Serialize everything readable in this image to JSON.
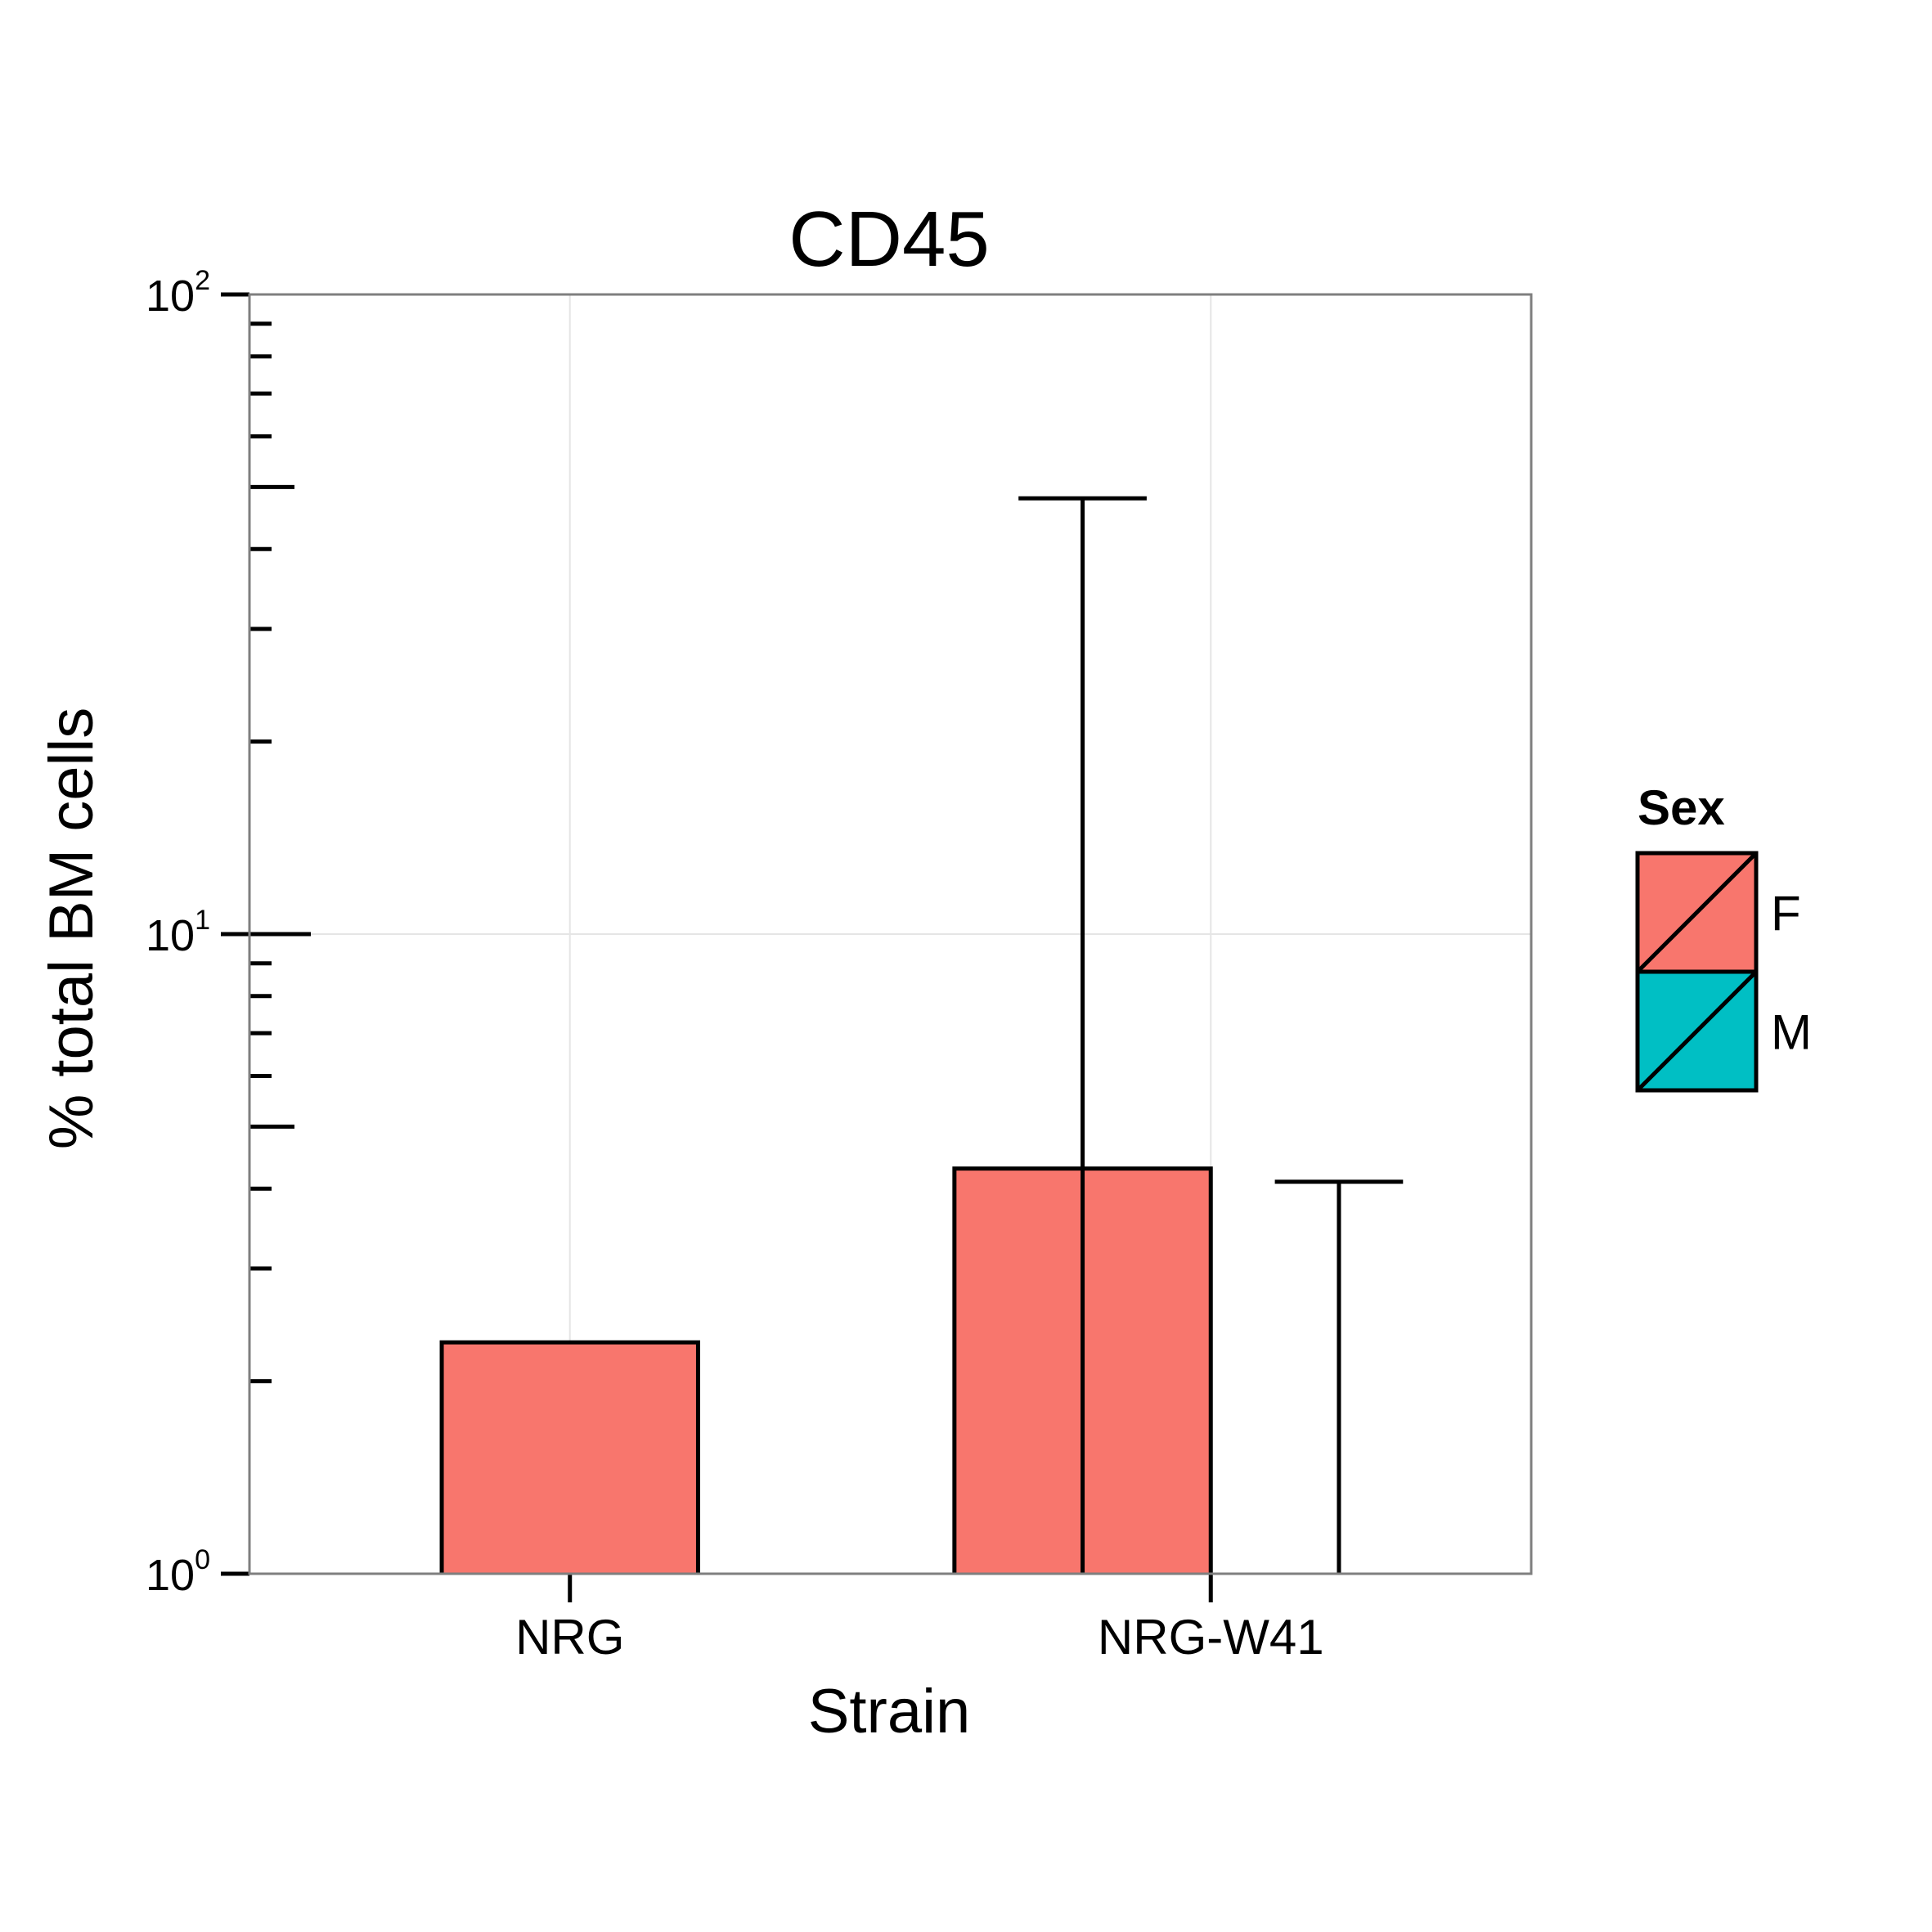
{
  "chart_data": {
    "type": "bar",
    "title": "CD45",
    "xlabel": "Strain",
    "ylabel": "% total BM cells",
    "y_scale": "log10",
    "ylim": [
      1,
      100
    ],
    "y_ticks": [
      {
        "value": 1,
        "base": "10",
        "exp": "0"
      },
      {
        "value": 10,
        "base": "10",
        "exp": "1"
      },
      {
        "value": 100,
        "base": "10",
        "exp": "2"
      }
    ],
    "categories": [
      "NRG",
      "NRG-W41"
    ],
    "grid": true,
    "legend": {
      "title": "Sex",
      "position": "right",
      "entries": [
        {
          "label": "F",
          "color": "#F8766D"
        },
        {
          "label": "M",
          "color": "#00BFC4"
        }
      ]
    },
    "series": [
      {
        "name": "F",
        "color": "#F8766D",
        "values": [
          2.3,
          4.3
        ],
        "error_upper": [
          null,
          48
        ]
      },
      {
        "name": "M",
        "color": "#00BFC4",
        "values": [
          null,
          null
        ],
        "error_upper": [
          null,
          4.1
        ]
      }
    ]
  }
}
